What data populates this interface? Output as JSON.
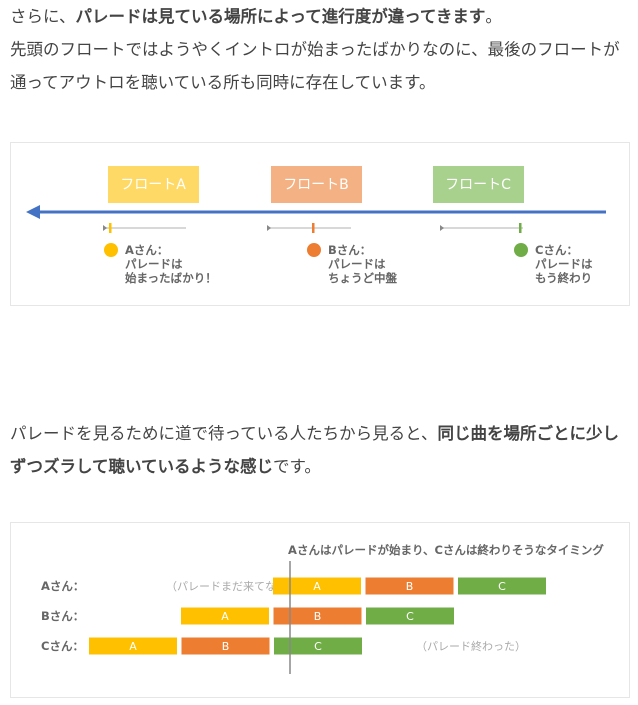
{
  "paragraph1": {
    "line1": [
      "さらに、",
      "パレードは見ている場所によって進行度が違ってきます",
      "。"
    ],
    "line2": "先頭のフロートではようやくイントロが始まったばかりなのに、最後のフロートが通ってアウトロを聴いている所も同時に存在しています。"
  },
  "diagram1": {
    "floats": [
      "フロートA",
      "フロートB",
      "フロートC"
    ],
    "people": [
      [
        "Aさん：",
        "パレードは",
        "始まったばかり！"
      ],
      [
        "Bさん：",
        "パレードは",
        "ちょうど中盤"
      ],
      [
        "Cさん：",
        "パレードは",
        "もう終わり"
      ]
    ]
  },
  "paragraph2": [
    "パレードを見るために道で待っている人たちから見ると、",
    "同じ曲を場所ごとに少しずつズラして聴いているような感じ",
    "です。"
  ],
  "diagram2": {
    "caption": "Aさんはパレードが始まり、Cさんは終わりそうなタイミング",
    "rows": [
      {
        "label": "Aさん：",
        "note": "（パレードまだ来てない）",
        "segments": [
          "A",
          "B",
          "C"
        ]
      },
      {
        "label": "Bさん：",
        "segments": [
          "A",
          "B",
          "C"
        ]
      },
      {
        "label": "Cさん：",
        "note": "（パレード終わった）",
        "segments": [
          "A",
          "B",
          "C"
        ]
      }
    ]
  }
}
